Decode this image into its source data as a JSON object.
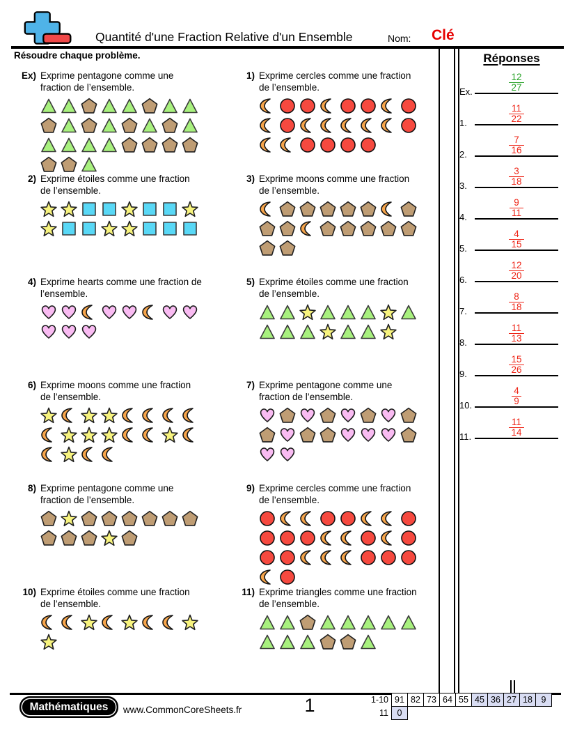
{
  "header": {
    "title": "Quantité d'une Fraction Relative d'un Ensemble",
    "name_label": "Nom:",
    "name_value": "Clé"
  },
  "instruction": "Résoudre chaque problème.",
  "colors": {
    "answer_red": "#ee2416",
    "answer_green": "#28a228",
    "key_red": "#e60000",
    "score_shaded": "#d9ddf3",
    "logo_blue": "#4fb3e8",
    "logo_red": "#f04848"
  },
  "shape_colors": {
    "triangle": {
      "fill": "#a8f17e",
      "stroke": "#3a3a3a"
    },
    "pentagon": {
      "fill": "#bf9d74",
      "stroke": "#1f1f1f"
    },
    "moon": {
      "fill": "#f7a54b",
      "stroke": "#141414"
    },
    "circle": {
      "fill": "#f6493f",
      "stroke": "#101010"
    },
    "star": {
      "fill": "#f7f37e",
      "stroke": "#1f1f1f"
    },
    "square": {
      "fill": "#59d8f6",
      "stroke": "#3a3a3a"
    },
    "heart": {
      "fill": "#f9bbf2",
      "stroke": "#1f1f1f"
    }
  },
  "problems": [
    {
      "label": "Ex)",
      "prompt_lines": [
        "Exprime pentagone comme une",
        "fraction de l’ensemble."
      ],
      "rows": [
        [
          "triangle",
          "triangle",
          "pentagon",
          "triangle",
          "triangle",
          "pentagon",
          "triangle",
          "triangle"
        ],
        [
          "pentagon",
          "triangle",
          "pentagon",
          "triangle",
          "pentagon",
          "triangle",
          "pentagon",
          "triangle"
        ],
        [
          "triangle",
          "triangle",
          "triangle",
          "triangle",
          "pentagon",
          "pentagon",
          "pentagon",
          "pentagon"
        ],
        [
          "pentagon",
          "pentagon",
          "triangle"
        ]
      ]
    },
    {
      "label": "1)",
      "prompt_lines": [
        "Exprime cercles comme une fraction",
        "de l’ensemble."
      ],
      "rows": [
        [
          "moon",
          "circle",
          "circle",
          "moon",
          "circle",
          "circle",
          "moon",
          "circle"
        ],
        [
          "moon",
          "circle",
          "moon",
          "moon",
          "moon",
          "moon",
          "moon",
          "circle"
        ],
        [
          "moon",
          "moon",
          "circle",
          "circle",
          "circle",
          "circle"
        ]
      ]
    },
    {
      "label": "2)",
      "prompt_lines": [
        "Exprime étoiles comme une fraction",
        "de l’ensemble."
      ],
      "rows": [
        [
          "star",
          "star",
          "square",
          "square",
          "star",
          "square",
          "square",
          "star"
        ],
        [
          "star",
          "square",
          "square",
          "star",
          "star",
          "square",
          "square",
          "square"
        ]
      ]
    },
    {
      "label": "3)",
      "prompt_lines": [
        "Exprime moons comme une fraction",
        "de l’ensemble."
      ],
      "rows": [
        [
          "moon",
          "pentagon",
          "pentagon",
          "pentagon",
          "pentagon",
          "pentagon",
          "moon",
          "pentagon"
        ],
        [
          "pentagon",
          "pentagon",
          "moon",
          "pentagon",
          "pentagon",
          "pentagon",
          "pentagon",
          "pentagon"
        ],
        [
          "pentagon",
          "pentagon"
        ]
      ]
    },
    {
      "label": "4)",
      "prompt_lines": [
        "Exprime hearts comme une fraction de",
        "l’ensemble."
      ],
      "rows": [
        [
          "heart",
          "heart",
          "moon",
          "heart",
          "heart",
          "moon",
          "heart",
          "heart"
        ],
        [
          "heart",
          "heart",
          "heart"
        ]
      ]
    },
    {
      "label": "5)",
      "prompt_lines": [
        "Exprime étoiles comme une fraction",
        "de l’ensemble."
      ],
      "rows": [
        [
          "triangle",
          "triangle",
          "star",
          "triangle",
          "triangle",
          "triangle",
          "star",
          "triangle"
        ],
        [
          "triangle",
          "triangle",
          "triangle",
          "star",
          "triangle",
          "triangle",
          "star"
        ]
      ]
    },
    {
      "label": "6)",
      "prompt_lines": [
        "Exprime moons comme une fraction",
        "de l’ensemble."
      ],
      "rows": [
        [
          "star",
          "moon",
          "star",
          "star",
          "moon",
          "moon",
          "moon",
          "moon"
        ],
        [
          "moon",
          "star",
          "star",
          "star",
          "moon",
          "moon",
          "star",
          "moon"
        ],
        [
          "moon",
          "star",
          "moon",
          "moon"
        ]
      ]
    },
    {
      "label": "7)",
      "prompt_lines": [
        "Exprime pentagone comme une",
        "fraction de l’ensemble."
      ],
      "rows": [
        [
          "heart",
          "pentagon",
          "heart",
          "pentagon",
          "heart",
          "pentagon",
          "heart",
          "pentagon"
        ],
        [
          "pentagon",
          "heart",
          "pentagon",
          "pentagon",
          "heart",
          "heart",
          "heart",
          "pentagon"
        ],
        [
          "heart",
          "heart"
        ]
      ]
    },
    {
      "label": "8)",
      "prompt_lines": [
        "Exprime pentagone comme une",
        "fraction de l’ensemble."
      ],
      "rows": [
        [
          "pentagon",
          "star",
          "pentagon",
          "pentagon",
          "pentagon",
          "pentagon",
          "pentagon",
          "pentagon"
        ],
        [
          "pentagon",
          "pentagon",
          "pentagon",
          "star",
          "pentagon"
        ]
      ]
    },
    {
      "label": "9)",
      "prompt_lines": [
        "Exprime cercles comme une fraction",
        "de l’ensemble."
      ],
      "rows": [
        [
          "circle",
          "moon",
          "moon",
          "circle",
          "circle",
          "moon",
          "moon",
          "circle"
        ],
        [
          "circle",
          "circle",
          "circle",
          "moon",
          "moon",
          "circle",
          "moon",
          "circle"
        ],
        [
          "circle",
          "circle",
          "moon",
          "moon",
          "moon",
          "circle",
          "circle",
          "circle"
        ],
        [
          "moon",
          "circle"
        ]
      ]
    },
    {
      "label": "10)",
      "prompt_lines": [
        "Exprime étoiles comme une fraction",
        "de l’ensemble."
      ],
      "rows": [
        [
          "moon",
          "moon",
          "star",
          "moon",
          "star",
          "moon",
          "moon",
          "star"
        ],
        [
          "star"
        ]
      ]
    },
    {
      "label": "11)",
      "prompt_lines": [
        "Exprime triangles comme une fraction",
        "de l’ensemble."
      ],
      "rows": [
        [
          "triangle",
          "triangle",
          "pentagon",
          "triangle",
          "triangle",
          "triangle",
          "triangle",
          "triangle"
        ],
        [
          "triangle",
          "triangle",
          "triangle",
          "pentagon",
          "pentagon",
          "triangle"
        ]
      ]
    }
  ],
  "answers_panel": {
    "title": "Réponses",
    "entries": [
      {
        "label": "Ex.",
        "numerator": "12",
        "denominator": "27",
        "color": "green"
      },
      {
        "label": "1.",
        "numerator": "11",
        "denominator": "22",
        "color": "red"
      },
      {
        "label": "2.",
        "numerator": "7",
        "denominator": "16",
        "color": "red"
      },
      {
        "label": "3.",
        "numerator": "3",
        "denominator": "18",
        "color": "red"
      },
      {
        "label": "4.",
        "numerator": "9",
        "denominator": "11",
        "color": "red"
      },
      {
        "label": "5.",
        "numerator": "4",
        "denominator": "15",
        "color": "red"
      },
      {
        "label": "6.",
        "numerator": "12",
        "denominator": "20",
        "color": "red"
      },
      {
        "label": "7.",
        "numerator": "8",
        "denominator": "18",
        "color": "red"
      },
      {
        "label": "8.",
        "numerator": "11",
        "denominator": "13",
        "color": "red"
      },
      {
        "label": "9.",
        "numerator": "15",
        "denominator": "26",
        "color": "red"
      },
      {
        "label": "10.",
        "numerator": "4",
        "denominator": "9",
        "color": "red"
      },
      {
        "label": "11.",
        "numerator": "11",
        "denominator": "14",
        "color": "red"
      }
    ]
  },
  "footer": {
    "brand": "Mathématiques",
    "url": "www.CommonCoreSheets.fr",
    "page_number": "1",
    "score_table": {
      "rows": [
        {
          "label": "1-10",
          "cells": [
            {
              "value": "91",
              "shaded": false
            },
            {
              "value": "82",
              "shaded": false
            },
            {
              "value": "73",
              "shaded": false
            },
            {
              "value": "64",
              "shaded": false
            },
            {
              "value": "55",
              "shaded": false
            },
            {
              "value": "45",
              "shaded": true
            },
            {
              "value": "36",
              "shaded": true
            },
            {
              "value": "27",
              "shaded": true
            },
            {
              "value": "18",
              "shaded": true
            },
            {
              "value": "9",
              "shaded": true
            }
          ]
        },
        {
          "label": "11",
          "cells": [
            {
              "value": "0",
              "shaded": true
            }
          ]
        }
      ]
    }
  }
}
